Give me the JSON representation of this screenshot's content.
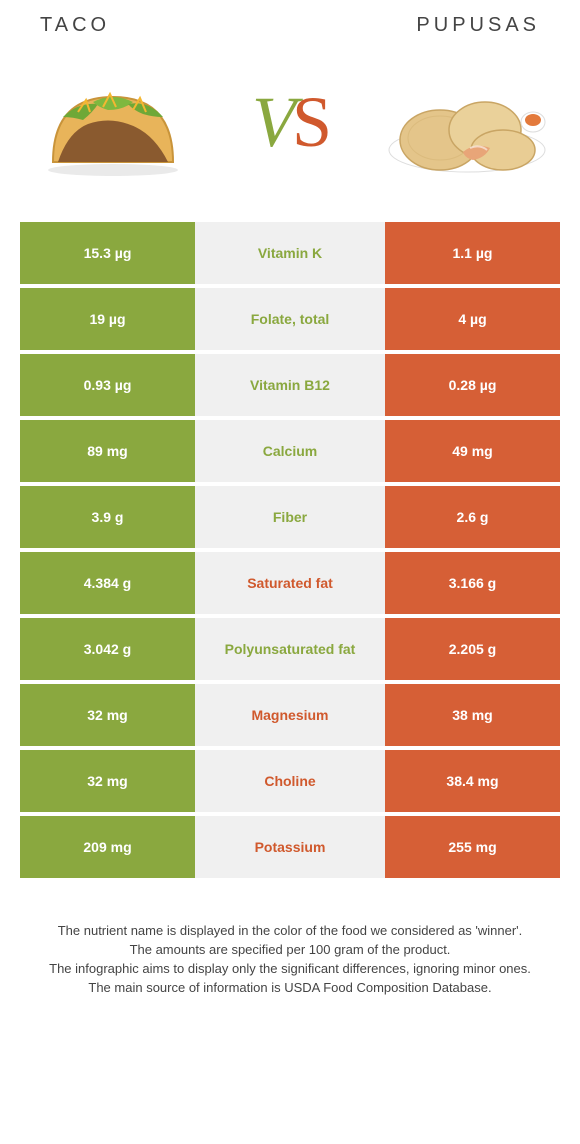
{
  "header": {
    "left_label": "Taco",
    "right_label": "Pupusas"
  },
  "colors": {
    "left_bg": "#8aa83f",
    "right_bg": "#d65f36",
    "mid_bg": "#f0f0f0",
    "left_text": "#8aa83f",
    "right_text": "#d0592d"
  },
  "hero": {
    "vs_v": "V",
    "vs_s": "S"
  },
  "rows": [
    {
      "left": "15.3 µg",
      "label": "Vitamin K",
      "right": "1.1 µg",
      "winner": "left"
    },
    {
      "left": "19 µg",
      "label": "Folate, total",
      "right": "4 µg",
      "winner": "left"
    },
    {
      "left": "0.93 µg",
      "label": "Vitamin B12",
      "right": "0.28 µg",
      "winner": "left"
    },
    {
      "left": "89 mg",
      "label": "Calcium",
      "right": "49 mg",
      "winner": "left"
    },
    {
      "left": "3.9 g",
      "label": "Fiber",
      "right": "2.6 g",
      "winner": "left"
    },
    {
      "left": "4.384 g",
      "label": "Saturated fat",
      "right": "3.166 g",
      "winner": "right"
    },
    {
      "left": "3.042 g",
      "label": "Polyunsaturated fat",
      "right": "2.205 g",
      "winner": "left"
    },
    {
      "left": "32 mg",
      "label": "Magnesium",
      "right": "38 mg",
      "winner": "right"
    },
    {
      "left": "32 mg",
      "label": "Choline",
      "right": "38.4 mg",
      "winner": "right"
    },
    {
      "left": "209 mg",
      "label": "Potassium",
      "right": "255 mg",
      "winner": "right"
    }
  ],
  "footer": {
    "line1": "The nutrient name is displayed in the color of the food we considered as 'winner'.",
    "line2": "The amounts are specified per 100 gram of the product.",
    "line3": "The infographic aims to display only the significant differences, ignoring minor ones.",
    "line4": "The main source of information is USDA Food Composition Database."
  }
}
